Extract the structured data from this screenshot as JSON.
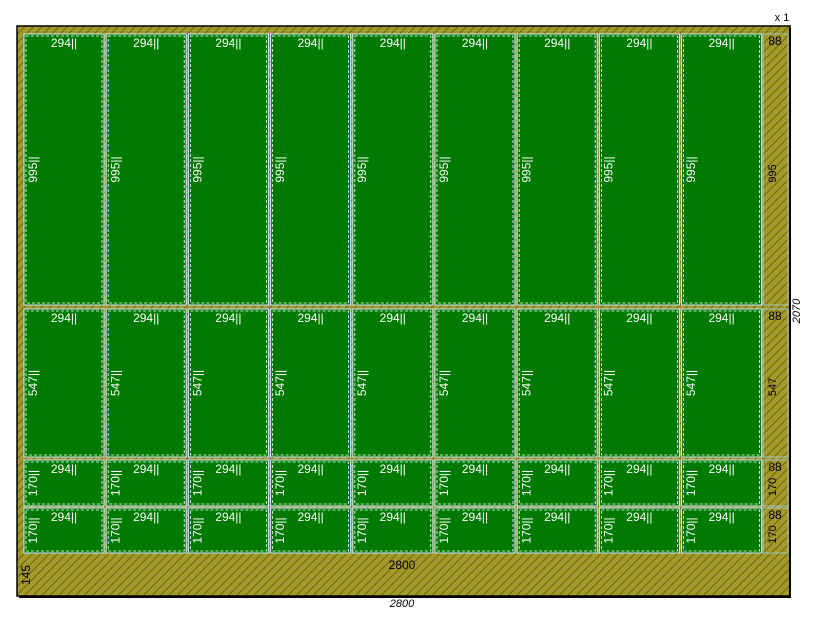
{
  "sheet": {
    "count_label": "x 1",
    "length": "2800",
    "width": "2070"
  },
  "rows": [
    {
      "height": "995||",
      "widths": [
        "294||",
        "294||",
        "294||",
        "294||",
        "294||",
        "294||",
        "294||",
        "294||",
        "294||"
      ],
      "offcut_width": "88",
      "offcut_height": "995"
    },
    {
      "height": "547||",
      "widths": [
        "294||",
        "294||",
        "294||",
        "294||",
        "294||",
        "294||",
        "294||",
        "294||",
        "294||"
      ],
      "offcut_width": "88",
      "offcut_height": "547"
    },
    {
      "height": "170||",
      "widths": [
        "294||",
        "294||",
        "294||",
        "294||",
        "294||",
        "294||",
        "294||",
        "294||",
        "294||"
      ],
      "offcut_width": "88",
      "offcut_height": "170"
    },
    {
      "height": "170||",
      "widths": [
        "294||",
        "294||",
        "294||",
        "294||",
        "294||",
        "294||",
        "294||",
        "294||",
        "294||"
      ],
      "offcut_width": "88",
      "offcut_height": "170"
    }
  ],
  "bottom_offcut": {
    "length": "2800",
    "height": "145"
  }
}
